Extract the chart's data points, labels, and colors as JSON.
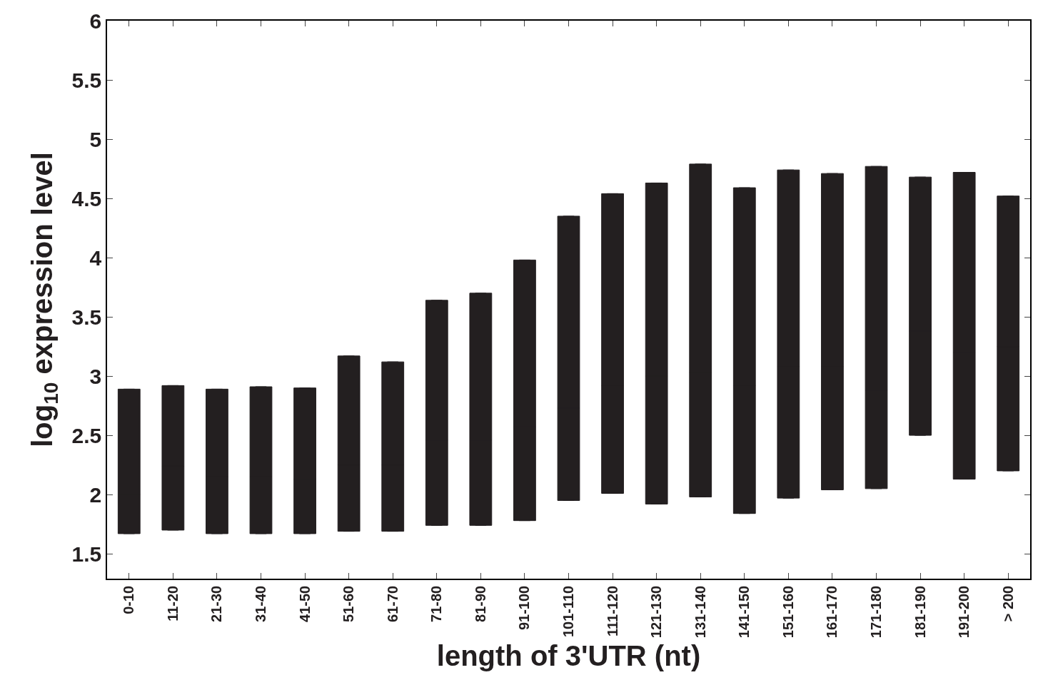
{
  "chart_data": {
    "type": "box",
    "xlabel": "length of 3'UTR (nt)",
    "ylabel": "log$_{10}$ expression level",
    "categories": [
      "0-10",
      "11-20",
      "21-30",
      "31-40",
      "41-50",
      "51-60",
      "61-70",
      "71-80",
      "81-90",
      "91-100",
      "101-110",
      "111-120",
      "121-130",
      "131-140",
      "141-150",
      "151-160",
      "161-170",
      "171-180",
      "181-190",
      "191-200",
      "> 200"
    ],
    "color": "#231f20",
    "ylim": [
      1.29,
      6
    ],
    "yticks": [
      1.5,
      2,
      2.5,
      3,
      3.5,
      4,
      4.5,
      5,
      5.5,
      6
    ],
    "boxes": [
      {
        "low": 1.67,
        "q1": 1.67,
        "median": 2.0,
        "q3": 2.89,
        "high": 2.89
      },
      {
        "low": 1.7,
        "q1": 1.7,
        "median": 2.24,
        "q3": 2.92,
        "high": 2.92
      },
      {
        "low": 1.67,
        "q1": 1.67,
        "median": 2.15,
        "q3": 2.89,
        "high": 2.89
      },
      {
        "low": 1.67,
        "q1": 1.67,
        "median": 2.15,
        "q3": 2.91,
        "high": 2.91
      },
      {
        "low": 1.67,
        "q1": 1.67,
        "median": 2.13,
        "q3": 2.9,
        "high": 2.9
      },
      {
        "low": 1.69,
        "q1": 1.69,
        "median": 2.25,
        "q3": 3.17,
        "high": 3.17
      },
      {
        "low": 1.69,
        "q1": 1.69,
        "median": 2.25,
        "q3": 3.12,
        "high": 3.12
      },
      {
        "low": 1.74,
        "q1": 1.74,
        "median": 2.46,
        "q3": 3.64,
        "high": 3.64
      },
      {
        "low": 1.74,
        "q1": 1.74,
        "median": 2.46,
        "q3": 3.7,
        "high": 3.7
      },
      {
        "low": 1.78,
        "q1": 1.78,
        "median": 2.57,
        "q3": 3.98,
        "high": 3.98
      },
      {
        "low": 1.95,
        "q1": 1.95,
        "median": 2.73,
        "q3": 4.35,
        "high": 4.35
      },
      {
        "low": 2.01,
        "q1": 2.01,
        "median": 2.92,
        "q3": 4.54,
        "high": 4.54
      },
      {
        "low": 1.92,
        "q1": 1.92,
        "median": 3.0,
        "q3": 4.63,
        "high": 4.63
      },
      {
        "low": 1.98,
        "q1": 1.98,
        "median": 3.03,
        "q3": 4.79,
        "high": 4.79
      },
      {
        "low": 1.84,
        "q1": 1.84,
        "median": 2.92,
        "q3": 4.59,
        "high": 4.59
      },
      {
        "low": 1.97,
        "q1": 1.97,
        "median": 3.08,
        "q3": 4.74,
        "high": 4.74
      },
      {
        "low": 2.04,
        "q1": 2.04,
        "median": 3.08,
        "q3": 4.71,
        "high": 4.71
      },
      {
        "low": 2.05,
        "q1": 2.05,
        "median": 2.88,
        "q3": 4.77,
        "high": 4.77
      },
      {
        "low": 2.5,
        "q1": 2.5,
        "median": 3.38,
        "q3": 4.68,
        "high": 4.68
      },
      {
        "low": 2.13,
        "q1": 2.13,
        "median": 3.2,
        "q3": 4.72,
        "high": 4.72
      },
      {
        "low": 2.2,
        "q1": 2.2,
        "median": 3.25,
        "q3": 4.52,
        "high": 4.52
      }
    ]
  }
}
